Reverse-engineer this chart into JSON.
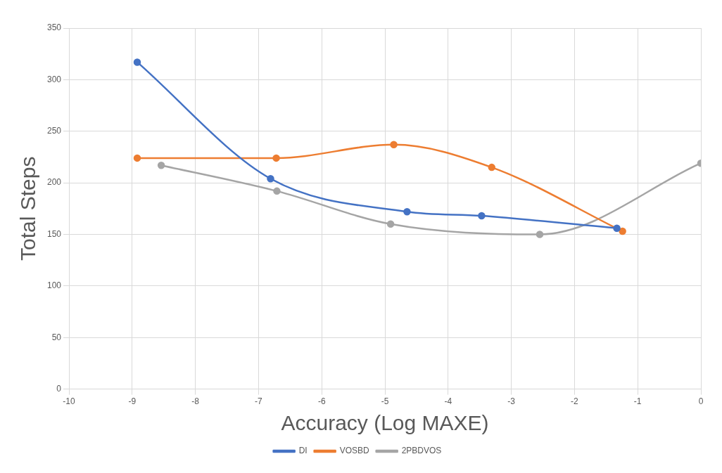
{
  "chart_data": {
    "type": "line",
    "xlabel": "Accuracy (Log MAXE)",
    "ylabel": "Total Steps",
    "xlim": [
      -10,
      0
    ],
    "xticks": [
      -10,
      -9,
      -8,
      -7,
      -6,
      -5,
      -4,
      -3,
      -2,
      -1,
      0
    ],
    "ylim": [
      0,
      350
    ],
    "yticks": [
      0,
      50,
      100,
      150,
      200,
      250,
      300,
      350
    ],
    "grid": true,
    "legend": "bottom",
    "marker": "circle",
    "line_style": "solid",
    "series": [
      {
        "name": "DI",
        "color": "#4472c4",
        "x": [
          -8.92,
          -6.81,
          -4.65,
          -3.47,
          -1.33
        ],
        "values": [
          317,
          204,
          172,
          168,
          156
        ]
      },
      {
        "name": "VOSBD",
        "color": "#ed7d31",
        "x": [
          -8.92,
          -6.72,
          -4.86,
          -3.31,
          -1.24
        ],
        "values": [
          224,
          224,
          237,
          215,
          153
        ]
      },
      {
        "name": "2PBDVOS",
        "color": "#a5a5a5",
        "x": [
          -8.54,
          -6.71,
          -4.91,
          -2.55,
          0
        ],
        "values": [
          217,
          192,
          160,
          150,
          219
        ]
      }
    ]
  }
}
